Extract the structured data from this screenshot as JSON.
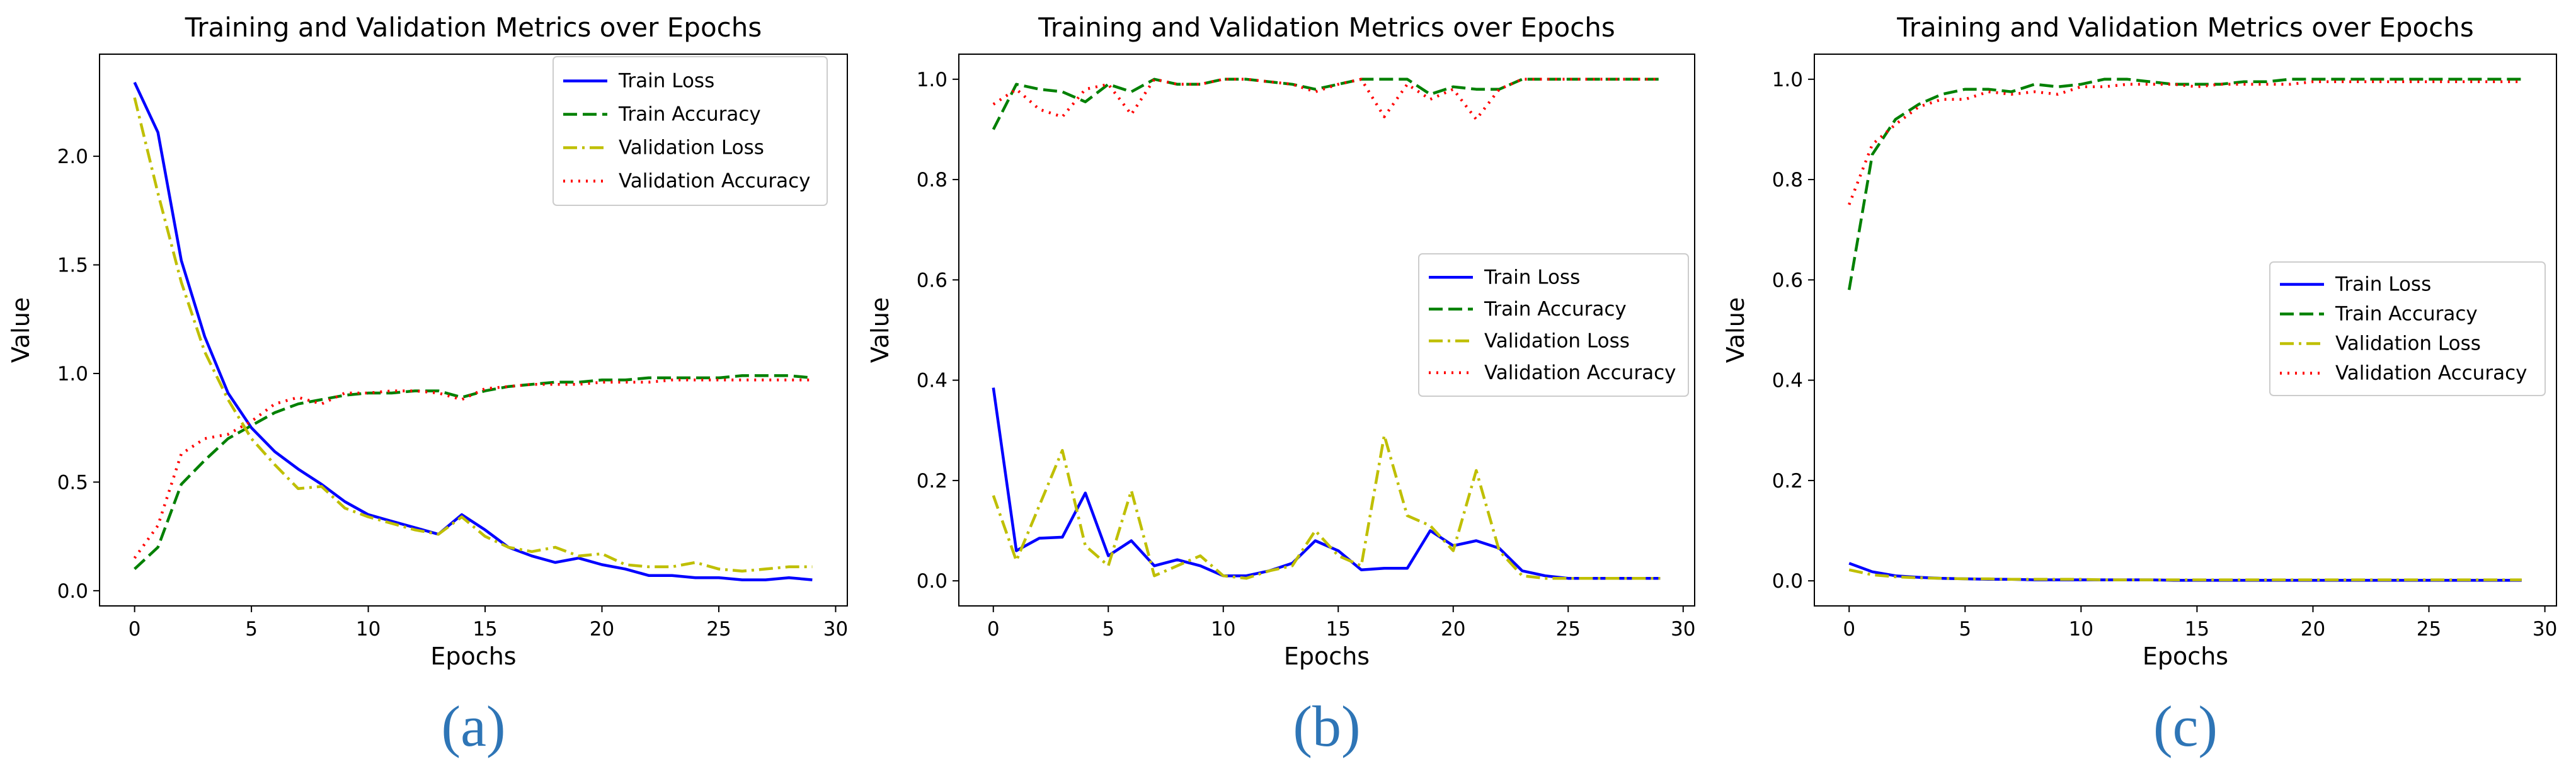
{
  "chart_data": [
    {
      "type": "line",
      "panel_label": "(a)",
      "title": "Training and Validation Metrics over Epochs",
      "xlabel": "Epochs",
      "ylabel": "Value",
      "xlim": [
        -1.5,
        30.5
      ],
      "ylim": [
        -0.07,
        2.47
      ],
      "xticks": [
        0,
        5,
        10,
        15,
        20,
        25,
        30
      ],
      "yticks": [
        0.0,
        0.5,
        1.0,
        1.5,
        2.0
      ],
      "ytick_labels": [
        "0.0",
        "0.5",
        "1.0",
        "1.5",
        "2.0"
      ],
      "legend_position": "top-right",
      "x": [
        0,
        1,
        2,
        3,
        4,
        5,
        6,
        7,
        8,
        9,
        10,
        11,
        12,
        13,
        14,
        15,
        16,
        17,
        18,
        19,
        20,
        21,
        22,
        23,
        24,
        25,
        26,
        27,
        28,
        29
      ],
      "series": [
        {
          "name": "Train Loss",
          "style": "solid",
          "color": "#0000ff",
          "values": [
            2.34,
            2.11,
            1.52,
            1.17,
            0.91,
            0.75,
            0.64,
            0.56,
            0.49,
            0.41,
            0.35,
            0.32,
            0.29,
            0.26,
            0.35,
            0.28,
            0.2,
            0.16,
            0.13,
            0.15,
            0.12,
            0.1,
            0.07,
            0.07,
            0.06,
            0.06,
            0.05,
            0.05,
            0.06,
            0.05
          ]
        },
        {
          "name": "Train Accuracy",
          "style": "dashed",
          "color": "#008000",
          "values": [
            0.1,
            0.2,
            0.49,
            0.6,
            0.7,
            0.76,
            0.82,
            0.86,
            0.88,
            0.9,
            0.91,
            0.91,
            0.92,
            0.92,
            0.89,
            0.92,
            0.94,
            0.95,
            0.96,
            0.96,
            0.97,
            0.97,
            0.98,
            0.98,
            0.98,
            0.98,
            0.99,
            0.99,
            0.99,
            0.98
          ]
        },
        {
          "name": "Validation Loss",
          "style": "dashdot",
          "color": "#bfbf00",
          "values": [
            2.27,
            1.83,
            1.42,
            1.1,
            0.88,
            0.7,
            0.58,
            0.47,
            0.48,
            0.38,
            0.34,
            0.31,
            0.28,
            0.26,
            0.34,
            0.25,
            0.2,
            0.18,
            0.2,
            0.16,
            0.17,
            0.12,
            0.11,
            0.11,
            0.13,
            0.1,
            0.09,
            0.1,
            0.11,
            0.11
          ]
        },
        {
          "name": "Validation Accuracy",
          "style": "dotted",
          "color": "#ff0000",
          "values": [
            0.15,
            0.3,
            0.63,
            0.7,
            0.72,
            0.78,
            0.86,
            0.89,
            0.86,
            0.91,
            0.91,
            0.92,
            0.92,
            0.91,
            0.88,
            0.93,
            0.94,
            0.95,
            0.95,
            0.95,
            0.96,
            0.96,
            0.96,
            0.97,
            0.97,
            0.97,
            0.97,
            0.97,
            0.97,
            0.97
          ]
        }
      ]
    },
    {
      "type": "line",
      "panel_label": "(b)",
      "title": "Training and Validation Metrics over Epochs",
      "xlabel": "Epochs",
      "ylabel": "Value",
      "xlim": [
        -1.5,
        30.5
      ],
      "ylim": [
        -0.05,
        1.05
      ],
      "xticks": [
        0,
        5,
        10,
        15,
        20,
        25,
        30
      ],
      "yticks": [
        0.0,
        0.2,
        0.4,
        0.6,
        0.8,
        1.0
      ],
      "ytick_labels": [
        "0.0",
        "0.2",
        "0.4",
        "0.6",
        "0.8",
        "1.0"
      ],
      "legend_position": "center-right",
      "x": [
        0,
        1,
        2,
        3,
        4,
        5,
        6,
        7,
        8,
        9,
        10,
        11,
        12,
        13,
        14,
        15,
        16,
        17,
        18,
        19,
        20,
        21,
        22,
        23,
        24,
        25,
        26,
        27,
        28,
        29
      ],
      "series": [
        {
          "name": "Train Loss",
          "style": "solid",
          "color": "#0000ff",
          "values": [
            0.385,
            0.06,
            0.085,
            0.087,
            0.175,
            0.05,
            0.08,
            0.03,
            0.042,
            0.03,
            0.01,
            0.01,
            0.02,
            0.035,
            0.08,
            0.06,
            0.022,
            0.025,
            0.025,
            0.1,
            0.07,
            0.08,
            0.065,
            0.02,
            0.01,
            0.005,
            0.005,
            0.005,
            0.005,
            0.005
          ]
        },
        {
          "name": "Train Accuracy",
          "style": "dashed",
          "color": "#008000",
          "values": [
            0.9,
            0.99,
            0.98,
            0.975,
            0.955,
            0.99,
            0.975,
            1.0,
            0.99,
            0.99,
            1.0,
            1.0,
            0.995,
            0.99,
            0.98,
            0.99,
            1.0,
            1.0,
            1.0,
            0.97,
            0.985,
            0.98,
            0.98,
            1.0,
            1.0,
            1.0,
            1.0,
            1.0,
            1.0,
            1.0
          ]
        },
        {
          "name": "Validation Loss",
          "style": "dashdot",
          "color": "#bfbf00",
          "values": [
            0.17,
            0.04,
            0.15,
            0.26,
            0.07,
            0.03,
            0.18,
            0.01,
            0.03,
            0.05,
            0.01,
            0.005,
            0.02,
            0.03,
            0.1,
            0.05,
            0.03,
            0.29,
            0.13,
            0.11,
            0.06,
            0.22,
            0.06,
            0.01,
            0.005,
            0.005,
            0.005,
            0.005,
            0.005,
            0.005
          ]
        },
        {
          "name": "Validation Accuracy",
          "style": "dotted",
          "color": "#ff0000",
          "values": [
            0.95,
            0.98,
            0.94,
            0.925,
            0.98,
            0.99,
            0.93,
            1.0,
            0.99,
            0.99,
            1.0,
            1.0,
            0.995,
            0.99,
            0.975,
            0.99,
            1.0,
            0.925,
            0.99,
            0.96,
            0.98,
            0.92,
            0.98,
            1.0,
            1.0,
            1.0,
            1.0,
            1.0,
            1.0,
            1.0
          ]
        }
      ]
    },
    {
      "type": "line",
      "panel_label": "(c)",
      "title": "Training and Validation Metrics over Epochs",
      "xlabel": "Epochs",
      "ylabel": "Value",
      "xlim": [
        -1.5,
        30.5
      ],
      "ylim": [
        -0.05,
        1.05
      ],
      "xticks": [
        0,
        5,
        10,
        15,
        20,
        25,
        30
      ],
      "yticks": [
        0.0,
        0.2,
        0.4,
        0.6,
        0.8,
        1.0
      ],
      "ytick_labels": [
        "0.0",
        "0.2",
        "0.4",
        "0.6",
        "0.8",
        "1.0"
      ],
      "legend_position": "center-right",
      "x": [
        0,
        1,
        2,
        3,
        4,
        5,
        6,
        7,
        8,
        9,
        10,
        11,
        12,
        13,
        14,
        15,
        16,
        17,
        18,
        19,
        20,
        21,
        22,
        23,
        24,
        25,
        26,
        27,
        28,
        29
      ],
      "series": [
        {
          "name": "Train Loss",
          "style": "solid",
          "color": "#0000ff",
          "values": [
            0.035,
            0.018,
            0.01,
            0.007,
            0.005,
            0.004,
            0.003,
            0.003,
            0.002,
            0.002,
            0.002,
            0.002,
            0.002,
            0.002,
            0.001,
            0.001,
            0.001,
            0.001,
            0.001,
            0.001,
            0.001,
            0.001,
            0.001,
            0.001,
            0.001,
            0.001,
            0.001,
            0.001,
            0.001,
            0.001
          ]
        },
        {
          "name": "Train Accuracy",
          "style": "dashed",
          "color": "#008000",
          "values": [
            0.58,
            0.85,
            0.92,
            0.95,
            0.97,
            0.98,
            0.98,
            0.975,
            0.99,
            0.985,
            0.99,
            1.0,
            1.0,
            0.995,
            0.99,
            0.99,
            0.99,
            0.995,
            0.995,
            1.0,
            1.0,
            1.0,
            1.0,
            1.0,
            1.0,
            1.0,
            1.0,
            1.0,
            1.0,
            1.0
          ]
        },
        {
          "name": "Validation Loss",
          "style": "dashdot",
          "color": "#bfbf00",
          "values": [
            0.022,
            0.012,
            0.008,
            0.006,
            0.005,
            0.004,
            0.004,
            0.003,
            0.003,
            0.003,
            0.003,
            0.002,
            0.002,
            0.002,
            0.002,
            0.002,
            0.002,
            0.002,
            0.002,
            0.002,
            0.002,
            0.002,
            0.002,
            0.002,
            0.002,
            0.002,
            0.002,
            0.002,
            0.002,
            0.002
          ]
        },
        {
          "name": "Validation Accuracy",
          "style": "dotted",
          "color": "#ff0000",
          "values": [
            0.75,
            0.87,
            0.91,
            0.945,
            0.96,
            0.96,
            0.975,
            0.97,
            0.975,
            0.97,
            0.985,
            0.985,
            0.99,
            0.99,
            0.99,
            0.985,
            0.99,
            0.99,
            0.99,
            0.99,
            0.995,
            0.995,
            0.995,
            0.995,
            0.995,
            0.995,
            0.995,
            0.995,
            0.995,
            0.995
          ]
        }
      ]
    }
  ]
}
